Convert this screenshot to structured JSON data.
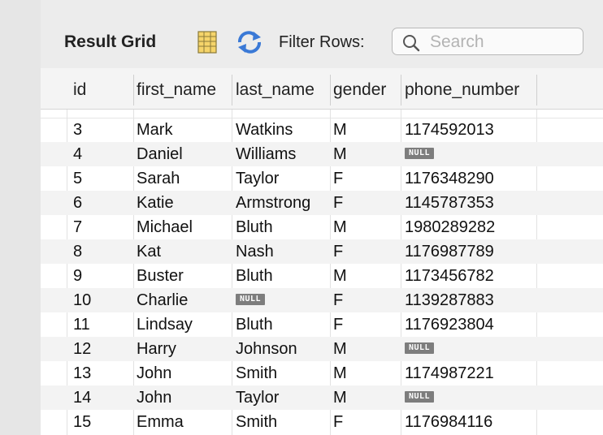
{
  "toolbar": {
    "title": "Result Grid",
    "filter_label": "Filter Rows:",
    "search_placeholder": "Search",
    "icons": [
      "grid-view-icon",
      "refresh-icon",
      "search-icon"
    ]
  },
  "colors": {
    "toolbar_bg": "#ececec",
    "grid_bg": "#ffffff",
    "alt_row_bg": "#f3f3f3",
    "null_badge_bg": "#7d7d7d",
    "refresh_blue": "#3a79d6"
  },
  "columns": [
    "id",
    "first_name",
    "last_name",
    "gender",
    "phone_number"
  ],
  "null_label": "NULL",
  "rows": [
    {
      "id": "3",
      "first_name": "Mark",
      "last_name": "Watkins",
      "gender": "M",
      "phone_number": "1174592013"
    },
    {
      "id": "4",
      "first_name": "Daniel",
      "last_name": "Williams",
      "gender": "M",
      "phone_number": null
    },
    {
      "id": "5",
      "first_name": "Sarah",
      "last_name": "Taylor",
      "gender": "F",
      "phone_number": "1176348290"
    },
    {
      "id": "6",
      "first_name": "Katie",
      "last_name": "Armstrong",
      "gender": "F",
      "phone_number": "1145787353"
    },
    {
      "id": "7",
      "first_name": "Michael",
      "last_name": "Bluth",
      "gender": "M",
      "phone_number": "1980289282"
    },
    {
      "id": "8",
      "first_name": "Kat",
      "last_name": "Nash",
      "gender": "F",
      "phone_number": "1176987789"
    },
    {
      "id": "9",
      "first_name": "Buster",
      "last_name": "Bluth",
      "gender": "M",
      "phone_number": "1173456782"
    },
    {
      "id": "10",
      "first_name": "Charlie",
      "last_name": null,
      "gender": "F",
      "phone_number": "1139287883"
    },
    {
      "id": "11",
      "first_name": "Lindsay",
      "last_name": "Bluth",
      "gender": "F",
      "phone_number": "1176923804"
    },
    {
      "id": "12",
      "first_name": "Harry",
      "last_name": "Johnson",
      "gender": "M",
      "phone_number": null
    },
    {
      "id": "13",
      "first_name": "John",
      "last_name": "Smith",
      "gender": "M",
      "phone_number": "1174987221"
    },
    {
      "id": "14",
      "first_name": "John",
      "last_name": "Taylor",
      "gender": "M",
      "phone_number": null
    },
    {
      "id": "15",
      "first_name": "Emma",
      "last_name": "Smith",
      "gender": "F",
      "phone_number": "1176984116"
    }
  ]
}
